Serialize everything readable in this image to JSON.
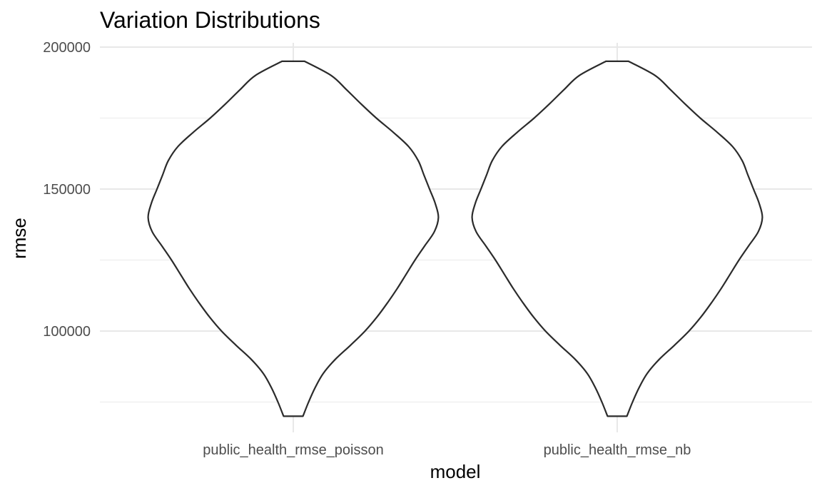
{
  "chart_data": {
    "type": "violin",
    "title": "Variation Distributions",
    "xlabel": "model",
    "ylabel": "rmse",
    "categories": [
      "public_health_rmse_poisson",
      "public_health_rmse_nb"
    ],
    "y_ticks": [
      100000,
      150000,
      200000
    ],
    "y_tick_labels": [
      "100000",
      "150000",
      "200000"
    ],
    "ylim": [
      67000,
      201000
    ],
    "grid": true,
    "legend": "none",
    "series": [
      {
        "category": "public_health_rmse_poisson",
        "min": 70000,
        "max": 195000,
        "density_profile": [
          [
            70000,
            0.12
          ],
          [
            75000,
            0.19
          ],
          [
            80000,
            0.27
          ],
          [
            85000,
            0.37
          ],
          [
            90000,
            0.52
          ],
          [
            95000,
            0.71
          ],
          [
            100000,
            0.89
          ],
          [
            105000,
            1.04
          ],
          [
            110000,
            1.17
          ],
          [
            115000,
            1.29
          ],
          [
            120000,
            1.4
          ],
          [
            125000,
            1.51
          ],
          [
            130000,
            1.63
          ],
          [
            135000,
            1.75
          ],
          [
            140000,
            1.8
          ],
          [
            145000,
            1.76
          ],
          [
            150000,
            1.69
          ],
          [
            155000,
            1.62
          ],
          [
            160000,
            1.55
          ],
          [
            165000,
            1.43
          ],
          [
            170000,
            1.24
          ],
          [
            175000,
            1.03
          ],
          [
            180000,
            0.84
          ],
          [
            185000,
            0.66
          ],
          [
            190000,
            0.47
          ],
          [
            195000,
            0.14
          ]
        ]
      },
      {
        "category": "public_health_rmse_nb",
        "min": 70000,
        "max": 195000,
        "density_profile": [
          [
            70000,
            0.12
          ],
          [
            75000,
            0.19
          ],
          [
            80000,
            0.27
          ],
          [
            85000,
            0.37
          ],
          [
            90000,
            0.52
          ],
          [
            95000,
            0.71
          ],
          [
            100000,
            0.89
          ],
          [
            105000,
            1.04
          ],
          [
            110000,
            1.17
          ],
          [
            115000,
            1.29
          ],
          [
            120000,
            1.4
          ],
          [
            125000,
            1.51
          ],
          [
            130000,
            1.63
          ],
          [
            135000,
            1.75
          ],
          [
            140000,
            1.8
          ],
          [
            145000,
            1.76
          ],
          [
            150000,
            1.69
          ],
          [
            155000,
            1.62
          ],
          [
            160000,
            1.55
          ],
          [
            165000,
            1.43
          ],
          [
            170000,
            1.24
          ],
          [
            175000,
            1.03
          ],
          [
            180000,
            0.84
          ],
          [
            185000,
            0.66
          ],
          [
            190000,
            0.47
          ],
          [
            195000,
            0.14
          ]
        ]
      }
    ]
  }
}
